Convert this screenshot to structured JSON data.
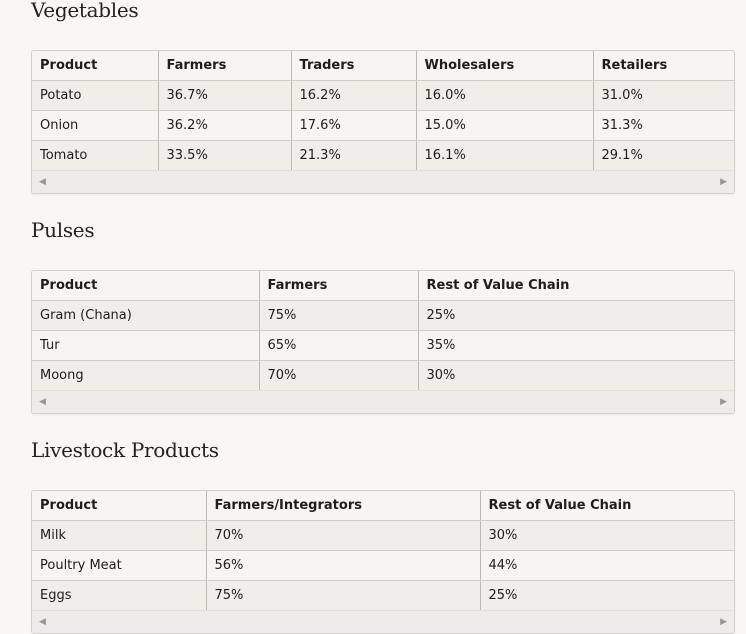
{
  "sections": [
    {
      "title": "Vegetables",
      "headers": [
        "Product",
        "Farmers",
        "Traders",
        "Wholesalers",
        "Retailers"
      ],
      "rows": [
        [
          "Potato",
          "36.7%",
          "16.2%",
          "16.0%",
          "31.0%"
        ],
        [
          "Onion",
          "36.2%",
          "17.6%",
          "15.0%",
          "31.3%"
        ],
        [
          "Tomato",
          "33.5%",
          "21.3%",
          "16.1%",
          "29.1%"
        ]
      ]
    },
    {
      "title": "Pulses",
      "headers": [
        "Product",
        "Farmers",
        "Rest of Value Chain"
      ],
      "rows": [
        [
          "Gram (Chana)",
          "75%",
          "25%"
        ],
        [
          "Tur",
          "65%",
          "35%"
        ],
        [
          "Moong",
          "70%",
          "30%"
        ]
      ]
    },
    {
      "title": "Livestock Products",
      "headers": [
        "Product",
        "Farmers/Integrators",
        "Rest of Value Chain"
      ],
      "rows": [
        [
          "Milk",
          "70%",
          "30%"
        ],
        [
          "Poultry Meat",
          "56%",
          "44%"
        ],
        [
          "Eggs",
          "75%",
          "25%"
        ]
      ]
    }
  ],
  "scrollbar": {
    "left_arrow": "◀",
    "right_arrow": "▶"
  }
}
